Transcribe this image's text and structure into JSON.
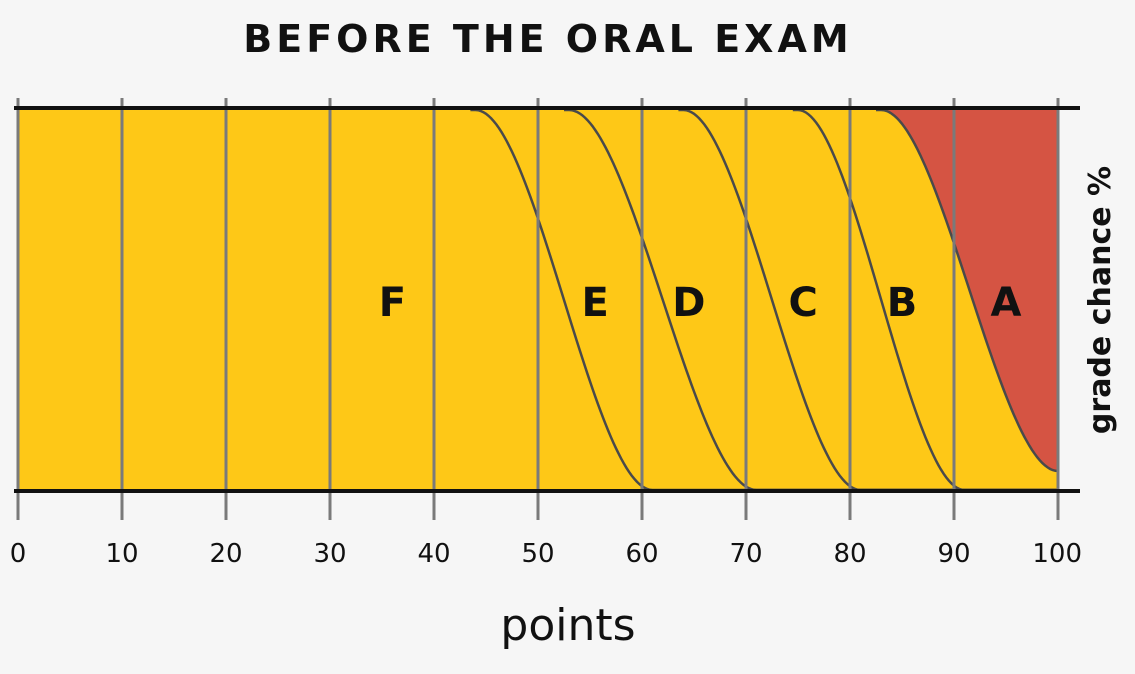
{
  "chart_data": {
    "type": "area",
    "title": "BEFORE THE ORAL EXAM",
    "xlabel": "points",
    "ylabel": "grade chance %",
    "xlim": [
      0,
      100
    ],
    "ylim": [
      0,
      100
    ],
    "x_ticks": [
      0,
      10,
      20,
      30,
      40,
      50,
      60,
      70,
      80,
      90,
      100
    ],
    "x_tick_labels": [
      "0",
      "10",
      "20",
      "30",
      "40",
      "50",
      "60",
      "70",
      "80",
      "90",
      "100"
    ],
    "grid": true,
    "stacked": true,
    "boundary_transitions": [
      {
        "lower": "F",
        "upper": "E",
        "start": 44,
        "end": 61
      },
      {
        "lower": "E",
        "upper": "D",
        "start": 53,
        "end": 71
      },
      {
        "lower": "D",
        "upper": "C",
        "start": 64,
        "end": 81
      },
      {
        "lower": "C",
        "upper": "B",
        "start": 75,
        "end": 91
      },
      {
        "lower": "B",
        "upper": "A",
        "start": 83,
        "end": 100,
        "max_top_share": 0.95
      }
    ],
    "series": [
      {
        "name": "F",
        "color": "#d55443",
        "label_at_x": 36
      },
      {
        "name": "E",
        "color": "#de7a9c",
        "label_at_x": 55.5
      },
      {
        "name": "D",
        "color": "#a583b6",
        "label_at_x": 64.5
      },
      {
        "name": "C",
        "color": "#34a9e2",
        "label_at_x": 75.5
      },
      {
        "name": "B",
        "color": "#35a853",
        "label_at_x": 85
      },
      {
        "name": "A",
        "color": "#fec817",
        "label_at_x": 95
      }
    ]
  }
}
